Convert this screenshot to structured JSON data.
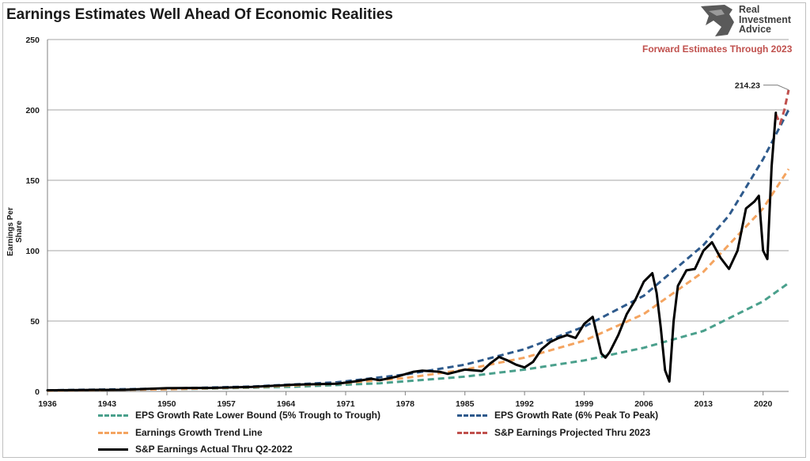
{
  "header": {
    "title": "Earnings Estimates Well Ahead Of Economic Realities",
    "logo_lines": [
      "Real",
      "Investment",
      "Advice"
    ],
    "forward_note": "Forward Estimates Through 2023"
  },
  "chart_data": {
    "type": "line",
    "title": "Earnings Estimates Well Ahead Of Economic Realities",
    "xlabel": "",
    "ylabel": "Earnings Per Share",
    "xlim": [
      1936,
      2023
    ],
    "ylim": [
      0,
      250
    ],
    "x_ticks": [
      1936,
      1943,
      1950,
      1957,
      1964,
      1971,
      1978,
      1985,
      1992,
      1999,
      2006,
      2013,
      2020
    ],
    "y_ticks": [
      0,
      50,
      100,
      150,
      200,
      250
    ],
    "grid": "horizontal",
    "legend_position": "bottom",
    "annotations": [
      {
        "text": "214.23",
        "x": 2023,
        "y": 214.23
      }
    ],
    "series": [
      {
        "name": "EPS Growth Rate Lower Bound (5% Trough to Trough)",
        "color": "#4aa08c",
        "style": "dashed",
        "x": [
          1936,
          1945,
          1955,
          1965,
          1975,
          1985,
          1992,
          1999,
          2006,
          2013,
          2020,
          2023
        ],
        "values": [
          0.8,
          1.2,
          2.0,
          3.3,
          5.8,
          10.5,
          15.5,
          22.0,
          31.0,
          43.0,
          64.0,
          77.0
        ]
      },
      {
        "name": "EPS Growth Rate (6% Peak To Peak)",
        "color": "#2e5a8c",
        "style": "dashed",
        "x": [
          1936,
          1950,
          1960,
          1970,
          1978,
          1985,
          1992,
          1999,
          2006,
          2013,
          2016,
          2020,
          2023
        ],
        "values": [
          0.8,
          2.0,
          3.5,
          6.5,
          12.0,
          19.0,
          30.0,
          46.0,
          68.0,
          104.0,
          125.0,
          165.0,
          200.0
        ]
      },
      {
        "name": "Earnings Growth Trend Line",
        "color": "#f4a460",
        "style": "dashed",
        "x": [
          1936,
          1950,
          1960,
          1970,
          1978,
          1985,
          1992,
          1999,
          2006,
          2013,
          2020,
          2023
        ],
        "values": [
          0.5,
          1.5,
          3.0,
          5.5,
          9.5,
          15.5,
          24.0,
          36.0,
          55.0,
          85.0,
          130.0,
          158.0
        ]
      },
      {
        "name": "S&P Earnings Projected Thru 2023",
        "color": "#c0504d",
        "style": "dashed",
        "x": [
          2021.5,
          2022,
          2022.5,
          2023
        ],
        "values": [
          197,
          190,
          200,
          214.23
        ]
      },
      {
        "name": "S&P Earnings Actual Thru Q2-2022",
        "color": "#000000",
        "style": "solid",
        "x": [
          1936,
          1940,
          1945,
          1950,
          1955,
          1960,
          1965,
          1970,
          1972,
          1974,
          1975,
          1977,
          1979,
          1980,
          1982,
          1983,
          1985,
          1987,
          1988,
          1989,
          1990,
          1991,
          1992,
          1993,
          1994,
          1995,
          1996,
          1997,
          1998,
          1999,
          2000,
          2001,
          2001.5,
          2002,
          2003,
          2004,
          2005,
          2006,
          2007,
          2007.5,
          2008,
          2008.5,
          2009,
          2009.5,
          2010,
          2011,
          2012,
          2013,
          2014,
          2015,
          2016,
          2017,
          2018,
          2019,
          2019.5,
          2020,
          2020.5,
          2021,
          2021.5
        ],
        "values": [
          0.8,
          1.0,
          1.2,
          2.3,
          2.5,
          3.2,
          4.8,
          5.5,
          7.0,
          9.0,
          8.0,
          10.5,
          14.0,
          14.8,
          14.0,
          12.5,
          15.5,
          14.5,
          20.0,
          24.5,
          22.0,
          19.0,
          17.0,
          21.0,
          30.0,
          35.0,
          38.0,
          40.0,
          38.0,
          48.0,
          53.0,
          27.0,
          24.0,
          28.0,
          40.0,
          55.0,
          65.0,
          78.0,
          84.0,
          70.0,
          45.0,
          15.0,
          7.0,
          50.0,
          75.0,
          86.0,
          87.0,
          100.0,
          106.0,
          95.0,
          87.0,
          100.0,
          130.0,
          135.0,
          139.0,
          100.0,
          94.0,
          160.0,
          198.0
        ]
      }
    ]
  }
}
